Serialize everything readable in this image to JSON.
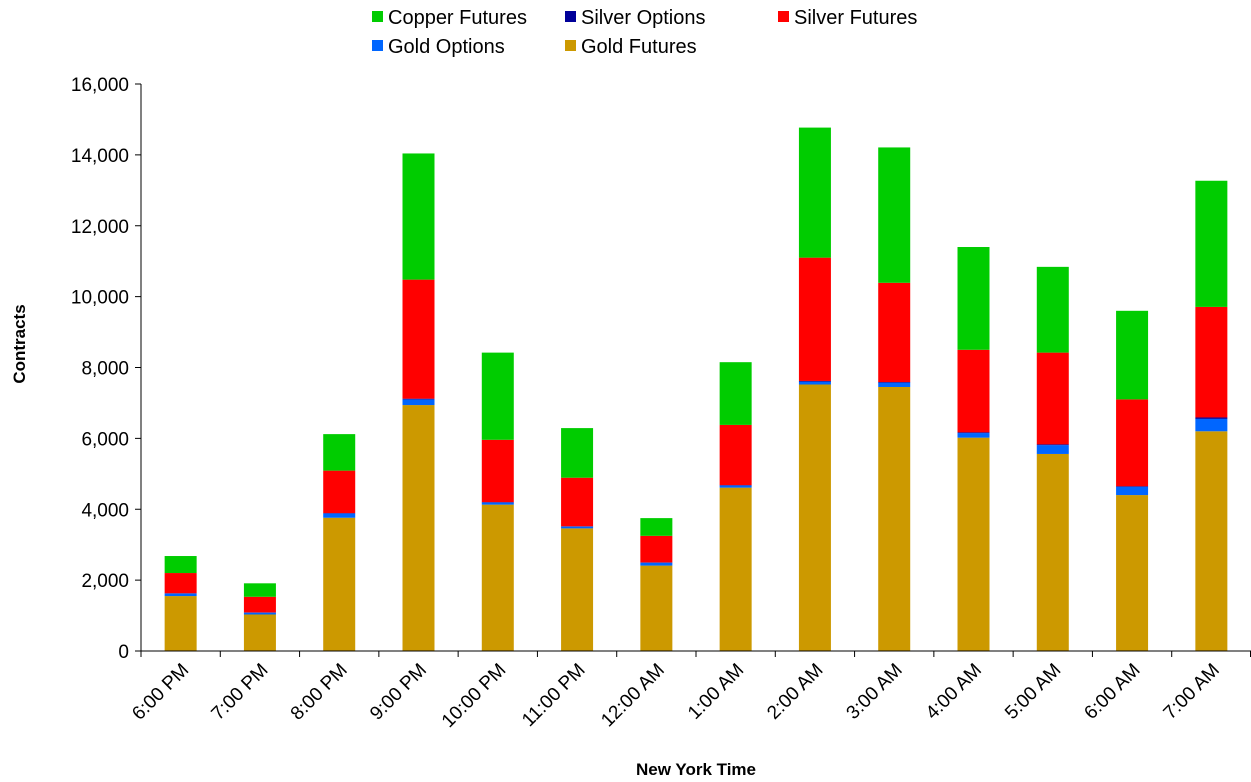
{
  "chart_data": {
    "type": "bar",
    "stacked": true,
    "title": "",
    "xlabel": "New York Time",
    "ylabel": "Contracts",
    "ylim": [
      0,
      16000
    ],
    "yticks": [
      0,
      2000,
      4000,
      6000,
      8000,
      10000,
      12000,
      14000,
      16000
    ],
    "ytick_labels": [
      "0",
      "2,000",
      "4,000",
      "6,000",
      "8,000",
      "10,000",
      "12,000",
      "14,000",
      "16,000"
    ],
    "grid": false,
    "legend_position": "top",
    "categories": [
      "6:00 PM",
      "7:00 PM",
      "8:00 PM",
      "9:00 PM",
      "10:00 PM",
      "11:00 PM",
      "12:00 AM",
      "1:00 AM",
      "2:00 AM",
      "3:00 AM",
      "4:00 AM",
      "5:00 AM",
      "6:00 AM",
      "7:00 AM"
    ],
    "series": [
      {
        "name": "Gold Futures",
        "color": "#CC9900",
        "values": [
          1550,
          1030,
          3760,
          6940,
          4130,
          3460,
          2410,
          4610,
          7520,
          7450,
          6020,
          5560,
          4400,
          6200
        ]
      },
      {
        "name": "Gold Options",
        "color": "#0066FF",
        "values": [
          70,
          50,
          120,
          160,
          60,
          50,
          80,
          60,
          80,
          120,
          130,
          250,
          230,
          350
        ]
      },
      {
        "name": "Silver Options",
        "color": "#000099",
        "values": [
          10,
          10,
          10,
          20,
          10,
          10,
          10,
          10,
          20,
          20,
          20,
          20,
          20,
          40
        ]
      },
      {
        "name": "Silver Futures",
        "color": "#FF0000",
        "values": [
          570,
          440,
          1200,
          3360,
          1760,
          1370,
          750,
          1700,
          3480,
          2800,
          2330,
          2590,
          2450,
          3120
        ]
      },
      {
        "name": "Copper Futures",
        "color": "#00CC00",
        "values": [
          480,
          380,
          1030,
          3560,
          2460,
          1400,
          500,
          1770,
          3670,
          3820,
          2900,
          2420,
          2500,
          3560
        ]
      }
    ],
    "legend_order": [
      "Copper Futures",
      "Silver Options",
      "Silver Futures",
      "Gold Options",
      "Gold Futures"
    ]
  }
}
